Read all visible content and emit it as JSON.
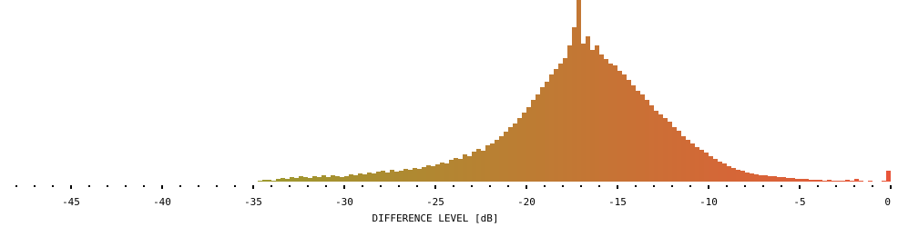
{
  "chart_data": {
    "type": "histogram",
    "xlabel": "DIFFERENCE LEVEL [dB]",
    "xlim": [
      -48.9,
      0.4
    ],
    "ylim": [
      0,
      200
    ],
    "xticks": [
      -45,
      -40,
      -35,
      -30,
      -25,
      -20,
      -15,
      -10,
      -5,
      0
    ],
    "xminorticks": [
      -48,
      -47,
      -46,
      -44,
      -43,
      -42,
      -41,
      -39,
      -38,
      -37,
      -36,
      -34,
      -33,
      -32,
      -31,
      -29,
      -28,
      -27,
      -26,
      -24,
      -23,
      -22,
      -21,
      -19,
      -18,
      -17,
      -16,
      -14,
      -13,
      -12,
      -11,
      -9,
      -8,
      -7,
      -6,
      -4,
      -3,
      -2,
      -1
    ],
    "color_start": "#9c9a2e",
    "color_end": "#e8553a",
    "bins": [
      -35,
      -34.75,
      -34.5,
      -34.25,
      -34,
      -33.75,
      -33.5,
      -33.25,
      -33,
      -32.75,
      -32.5,
      -32.25,
      -32,
      -31.75,
      -31.5,
      -31.25,
      -31,
      -30.75,
      -30.5,
      -30.25,
      -30,
      -29.75,
      -29.5,
      -29.25,
      -29,
      -28.75,
      -28.5,
      -28.25,
      -28,
      -27.75,
      -27.5,
      -27.25,
      -27,
      -26.75,
      -26.5,
      -26.25,
      -26,
      -25.75,
      -25.5,
      -25.25,
      -25,
      -24.75,
      -24.5,
      -24.25,
      -24,
      -23.75,
      -23.5,
      -23.25,
      -23,
      -22.75,
      -22.5,
      -22.25,
      -22,
      -21.75,
      -21.5,
      -21.25,
      -21,
      -20.75,
      -20.5,
      -20.25,
      -20,
      -19.75,
      -19.5,
      -19.25,
      -19,
      -18.75,
      -18.5,
      -18.25,
      -18,
      -17.75,
      -17.5,
      -17.25,
      -17,
      -16.75,
      -16.5,
      -16.25,
      -16,
      -15.75,
      -15.5,
      -15.25,
      -15,
      -14.75,
      -14.5,
      -14.25,
      -14,
      -13.75,
      -13.5,
      -13.25,
      -13,
      -12.75,
      -12.5,
      -12.25,
      -12,
      -11.75,
      -11.5,
      -11.25,
      -11,
      -10.75,
      -10.5,
      -10.25,
      -10,
      -9.75,
      -9.5,
      -9.25,
      -9,
      -8.75,
      -8.5,
      -8.25,
      -8,
      -7.75,
      -7.5,
      -7.25,
      -7,
      -6.75,
      -6.5,
      -6.25,
      -6,
      -5.75,
      -5.5,
      -5.25,
      -5,
      -4.75,
      -4.5,
      -4.25,
      -4,
      -3.75,
      -3.5,
      -3.25,
      -3,
      -2.75,
      -2.5,
      -2.25,
      -2,
      -1.75,
      -1.5,
      -1.25,
      -1,
      -0.75,
      -0.5,
      -0.25,
      0
    ],
    "values": [
      0,
      1,
      2,
      2,
      1,
      3,
      4,
      3,
      5,
      4,
      6,
      5,
      4,
      6,
      5,
      7,
      5,
      7,
      6,
      5,
      6,
      8,
      7,
      9,
      8,
      10,
      9,
      11,
      12,
      10,
      13,
      11,
      12,
      14,
      13,
      15,
      14,
      16,
      18,
      17,
      19,
      21,
      20,
      24,
      26,
      25,
      30,
      28,
      33,
      36,
      34,
      40,
      42,
      46,
      50,
      55,
      60,
      64,
      70,
      76,
      82,
      90,
      96,
      104,
      110,
      118,
      124,
      130,
      136,
      150,
      170,
      200,
      152,
      160,
      145,
      150,
      140,
      135,
      130,
      128,
      122,
      118,
      112,
      106,
      100,
      96,
      90,
      84,
      78,
      74,
      70,
      66,
      60,
      56,
      50,
      46,
      42,
      38,
      35,
      32,
      28,
      25,
      22,
      20,
      17,
      15,
      13,
      12,
      10,
      9,
      8,
      7,
      7,
      6,
      6,
      5,
      5,
      4,
      4,
      3,
      3,
      3,
      2,
      2,
      2,
      1,
      2,
      1,
      1,
      1,
      2,
      1,
      3,
      1,
      0,
      1,
      0,
      0,
      1,
      12
    ]
  }
}
